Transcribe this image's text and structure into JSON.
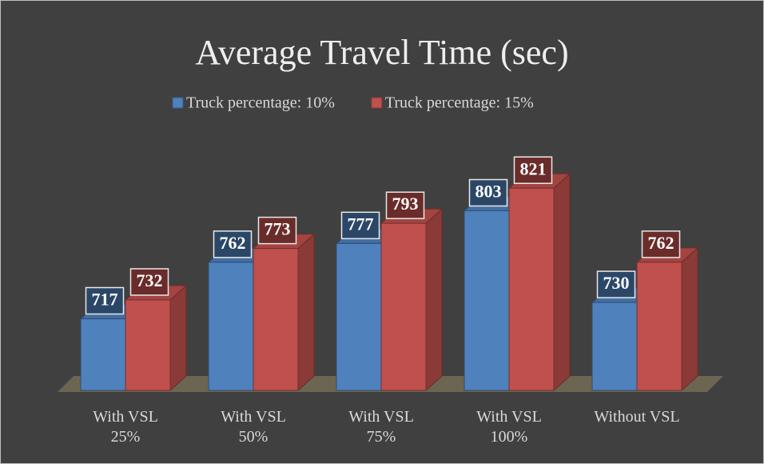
{
  "chart_data": {
    "type": "bar3d",
    "title": "Average Travel Time (sec)",
    "categories": [
      "With VSL\n25%",
      "With VSL\n50%",
      "With VSL\n75%",
      "With VSL\n100%",
      "Without VSL"
    ],
    "series": [
      {
        "name": "Truck percentage: 10%",
        "color": "#4f81bd",
        "values": [
          717,
          762,
          777,
          803,
          730
        ]
      },
      {
        "name": "Truck percentage: 15%",
        "color": "#c0504d",
        "values": [
          732,
          773,
          793,
          821,
          762
        ]
      }
    ],
    "ylim": [
      660,
      860
    ],
    "legend": "top"
  }
}
